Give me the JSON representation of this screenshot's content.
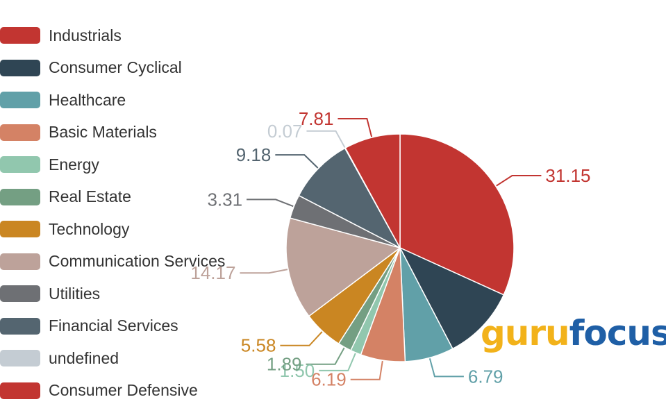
{
  "chart_data": {
    "type": "pie",
    "title": "",
    "legend_position": "left",
    "categories": [
      "Industrials",
      "Consumer Cyclical",
      "Healthcare",
      "Basic Materials",
      "Energy",
      "Real Estate",
      "Technology",
      "Communication Services",
      "Utilities",
      "Financial Services",
      "undefined",
      "Consumer Defensive"
    ],
    "values": [
      31.15,
      10.35,
      6.79,
      6.19,
      1.5,
      1.89,
      5.58,
      14.17,
      3.31,
      9.18,
      0.07,
      7.81
    ],
    "value_labels": [
      "31.15",
      "",
      "6.79",
      "6.19",
      "1.50",
      "1.89",
      "5.58",
      "14.17",
      "3.31",
      "9.18",
      "0.07",
      "7.81"
    ],
    "colors": [
      "#c23531",
      "#2f4554",
      "#61a0a8",
      "#d48265",
      "#91c7ae",
      "#749f83",
      "#ca8622",
      "#bda29a",
      "#6e7074",
      "#546570",
      "#c4ccd3",
      "#c23531"
    ]
  },
  "watermark": {
    "part1": "guru",
    "part2": "focus"
  }
}
